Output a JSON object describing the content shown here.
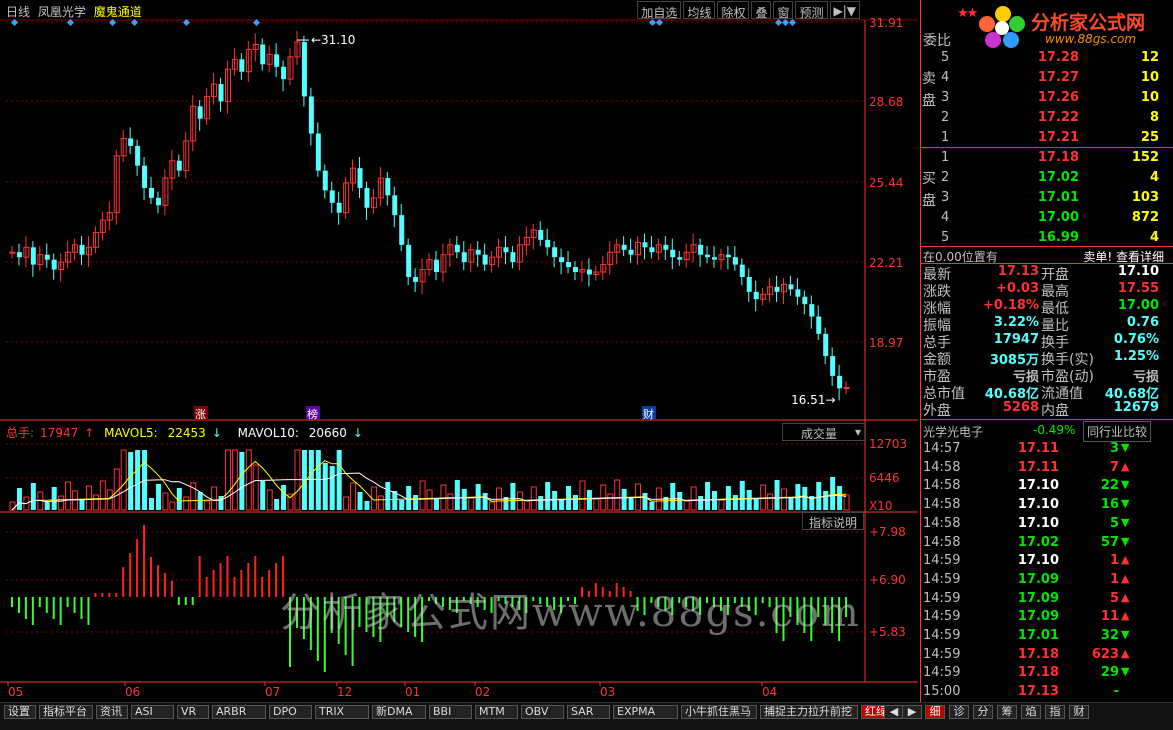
{
  "header": {
    "period": "日线",
    "stock_name": "凤凰光学",
    "indicator_name": "魔鬼通道",
    "buttons": [
      "加自选",
      "均线",
      "除权",
      "叠",
      "窗",
      "预测",
      "▶|▼"
    ]
  },
  "logo": {
    "brand": "分析家公式网",
    "url": "www.88gs.com",
    "stars": "★★"
  },
  "main_chart": {
    "y_axis_labels": [
      "31.91",
      "28.68",
      "25.44",
      "22.21",
      "18.97"
    ],
    "high_marker": "31.10",
    "low_marker": "16.51",
    "event_marks": [
      "涨",
      "榜",
      "财"
    ]
  },
  "volume_panel": {
    "legend": {
      "total_label": "总手:",
      "total_value": "17947",
      "mavol5_label": "MAVOL5:",
      "mavol5_value": "22453",
      "mavol10_label": "MAVOL10:",
      "mavol10_value": "20660"
    },
    "dropdown": "成交量",
    "y_labels": [
      "12703",
      "6446",
      "X10"
    ]
  },
  "indicator_panel": {
    "button": "指标说明",
    "y_labels": [
      "+7.98",
      "+6.90",
      "+5.83"
    ]
  },
  "x_axis_labels": [
    "05",
    "06",
    "07",
    "12",
    "01",
    "02",
    "03",
    "04"
  ],
  "watermark": "分析家公式网www.88gs.com",
  "order_book": {
    "title": "委比",
    "sell_label": [
      "卖",
      "盘"
    ],
    "buy_label": [
      "买",
      "盘"
    ],
    "sells": [
      {
        "level": "5",
        "price": "17.28",
        "volume": "12"
      },
      {
        "level": "4",
        "price": "17.27",
        "volume": "10"
      },
      {
        "level": "3",
        "price": "17.26",
        "volume": "10"
      },
      {
        "level": "2",
        "price": "17.22",
        "volume": "8"
      },
      {
        "level": "1",
        "price": "17.21",
        "volume": "25"
      }
    ],
    "buys": [
      {
        "level": "1",
        "price": "17.18",
        "volume": "152",
        "color": "red"
      },
      {
        "level": "2",
        "price": "17.02",
        "volume": "4",
        "color": "green"
      },
      {
        "level": "3",
        "price": "17.01",
        "volume": "103",
        "color": "green"
      },
      {
        "level": "4",
        "price": "17.00",
        "volume": "872",
        "color": "green"
      },
      {
        "level": "5",
        "price": "16.99",
        "volume": "4",
        "color": "green"
      }
    ]
  },
  "position_bar": {
    "left": "在0.00位置有",
    "right": "卖单! 查看详细"
  },
  "quotes": [
    {
      "k1": "最新",
      "v1": "17.13",
      "c1": "red",
      "k2": "开盘",
      "v2": "17.10",
      "c2": "white"
    },
    {
      "k1": "涨跌",
      "v1": "+0.03",
      "c1": "red",
      "k2": "最高",
      "v2": "17.55",
      "c2": "red"
    },
    {
      "k1": "涨幅",
      "v1": "+0.18%",
      "c1": "red",
      "k2": "最低",
      "v2": "17.00",
      "c2": "green"
    },
    {
      "k1": "振幅",
      "v1": "3.22%",
      "c1": "cyan",
      "k2": "量比",
      "v2": "0.76",
      "c2": "cyan"
    },
    {
      "k1": "总手",
      "v1": "17947",
      "c1": "cyan",
      "k2": "换手",
      "v2": "0.76%",
      "c2": "cyan"
    },
    {
      "k1": "金额",
      "v1": "3085万",
      "c1": "cyan",
      "k2": "换手(实)",
      "v2": "1.25%",
      "c2": "cyan"
    },
    {
      "k1": "市盈",
      "v1": "亏损",
      "c1": "grey",
      "k2": "市盈(动)",
      "v2": "亏损",
      "c2": "grey"
    },
    {
      "k1": "总市值",
      "v1": "40.68亿",
      "c1": "cyan",
      "k2": "流通值",
      "v2": "40.68亿",
      "c2": "cyan"
    },
    {
      "k1": "外盘",
      "v1": "5268",
      "c1": "red",
      "k2": "内盘",
      "v2": "12679",
      "c2": "cyan"
    }
  ],
  "sector": {
    "name": "光学光电子",
    "change": "-0.49%",
    "button": "同行业比较"
  },
  "ticks": [
    {
      "time": "14:57",
      "price": "17.11",
      "pc": "red",
      "vol": "3",
      "dir": "down"
    },
    {
      "time": "14:58",
      "price": "17.11",
      "pc": "red",
      "vol": "7",
      "dir": "up"
    },
    {
      "time": "14:58",
      "price": "17.10",
      "pc": "white",
      "vol": "22",
      "dir": "down"
    },
    {
      "time": "14:58",
      "price": "17.10",
      "pc": "white",
      "vol": "16",
      "dir": "down"
    },
    {
      "time": "14:58",
      "price": "17.10",
      "pc": "white",
      "vol": "5",
      "dir": "down"
    },
    {
      "time": "14:58",
      "price": "17.02",
      "pc": "green",
      "vol": "57",
      "dir": "down"
    },
    {
      "time": "14:59",
      "price": "17.10",
      "pc": "white",
      "vol": "1",
      "dir": "up"
    },
    {
      "time": "14:59",
      "price": "17.09",
      "pc": "green",
      "vol": "1",
      "dir": "up"
    },
    {
      "time": "14:59",
      "price": "17.09",
      "pc": "green",
      "vol": "5",
      "dir": "up"
    },
    {
      "time": "14:59",
      "price": "17.09",
      "pc": "green",
      "vol": "11",
      "dir": "up"
    },
    {
      "time": "14:59",
      "price": "17.01",
      "pc": "green",
      "vol": "32",
      "dir": "down"
    },
    {
      "time": "14:59",
      "price": "17.18",
      "pc": "red",
      "vol": "623",
      "dir": "up"
    },
    {
      "time": "14:59",
      "price": "17.18",
      "pc": "red",
      "vol": "29",
      "dir": "down"
    },
    {
      "time": "15:00",
      "price": "17.13",
      "pc": "red",
      "vol": "-",
      "dir": "none"
    }
  ],
  "bottom_tabs": [
    "设置",
    "指标平台",
    "资讯",
    "ASI",
    "VR",
    "ARBR",
    "DPO",
    "TRIX",
    "新DMA",
    "BBI",
    "MTM",
    "OBV",
    "SAR",
    "EXPMA",
    "小牛抓住黑马",
    "捕捉主力拉升前挖",
    "红绿两道"
  ],
  "bottom_active": "红绿两道",
  "right_tabs": [
    "细",
    "诊",
    "分",
    "筹",
    "焰",
    "指",
    "财"
  ],
  "right_active": "细",
  "colors": {
    "up": "#ff3232",
    "down": "#54ffff",
    "grid": "#800000",
    "axis_text": "#ff3232"
  }
}
